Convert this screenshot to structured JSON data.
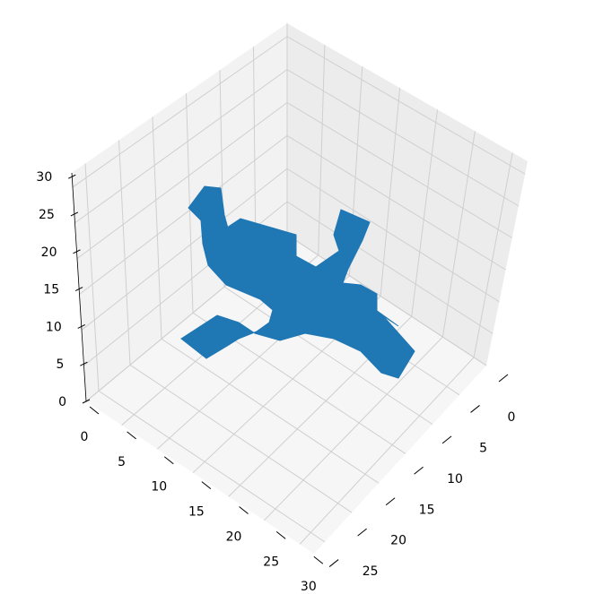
{
  "chart_data": {
    "type": "voxel",
    "projection": "3d-isometric",
    "grid": true,
    "pane_colors": {
      "pane": "#f2f2f2",
      "grid": "#cfcfcf",
      "voxel_top": "#1f77b4",
      "voxel_side": "#1f77b4"
    },
    "axes": {
      "x": {
        "ticks": [
          "0",
          "5",
          "10",
          "15",
          "20",
          "25",
          "30"
        ],
        "range": [
          0,
          32
        ]
      },
      "y": {
        "ticks": [
          "0",
          "5",
          "10",
          "15",
          "20",
          "25",
          "30"
        ],
        "range": [
          0,
          32
        ]
      },
      "z": {
        "ticks": [
          "0",
          "5",
          "10",
          "15",
          "20",
          "25",
          "30"
        ],
        "range": [
          0,
          32
        ]
      }
    },
    "shape": "airplane",
    "voxel_segments": [
      {
        "name": "fuselage",
        "from": [
          8,
          6,
          10
        ],
        "to": [
          26,
          24,
          12
        ]
      },
      {
        "name": "wing-left",
        "from": [
          4,
          22,
          10
        ],
        "to": [
          16,
          12,
          12
        ]
      },
      {
        "name": "wing-right",
        "from": [
          18,
          8,
          10
        ],
        "to": [
          28,
          22,
          12
        ]
      },
      {
        "name": "tail-fin",
        "from": [
          8,
          6,
          12
        ],
        "to": [
          9,
          7,
          22
        ]
      }
    ]
  }
}
